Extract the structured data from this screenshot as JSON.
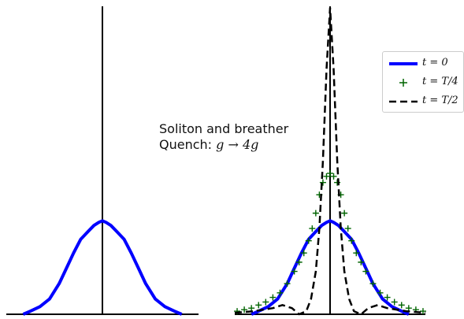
{
  "annotation": {
    "line1": "Soliton and breather",
    "line2_prefix": "Quench: ",
    "line2_math": "g → 4g"
  },
  "legend": {
    "entries": [
      {
        "label": "t = 0",
        "style": "solid",
        "color": "#0000ff"
      },
      {
        "label": "t = T/4",
        "style": "plus",
        "color": "#006400"
      },
      {
        "label": "t = T/2",
        "style": "dashed",
        "color": "#000000"
      }
    ]
  },
  "chart_data": [
    {
      "type": "line",
      "panel": "left",
      "xlim": [
        -4,
        4
      ],
      "ylim": [
        0,
        1
      ],
      "axes_frame": "bottom spine and vertical line at x = 0 only, no ticks",
      "series": [
        {
          "style": "solid",
          "color": "#0000ff",
          "x": [
            -3.3,
            -3.0,
            -2.6,
            -2.2,
            -1.8,
            -1.5,
            -1.2,
            -0.9,
            -0.6,
            -0.35,
            -0.15,
            0.0,
            0.15,
            0.35,
            0.6,
            0.9,
            1.2,
            1.5,
            1.8,
            2.2,
            2.6,
            3.0,
            3.3
          ],
          "y": [
            0.0,
            0.01,
            0.025,
            0.05,
            0.1,
            0.15,
            0.2,
            0.245,
            0.27,
            0.29,
            0.3,
            0.305,
            0.3,
            0.29,
            0.27,
            0.245,
            0.2,
            0.15,
            0.1,
            0.05,
            0.025,
            0.01,
            0.0
          ]
        }
      ]
    },
    {
      "type": "line",
      "panel": "right",
      "xlim": [
        -4,
        4
      ],
      "ylim": [
        0,
        1
      ],
      "axes_frame": "bottom spine and vertical line at x = 0 only, no ticks",
      "series": [
        {
          "name": "t = 0",
          "style": "solid",
          "color": "#0000ff",
          "x": [
            -3.3,
            -3.0,
            -2.6,
            -2.2,
            -1.8,
            -1.5,
            -1.2,
            -0.9,
            -0.6,
            -0.35,
            -0.15,
            0.0,
            0.15,
            0.35,
            0.6,
            0.9,
            1.2,
            1.5,
            1.8,
            2.2,
            2.6,
            3.0,
            3.3
          ],
          "y": [
            0.0,
            0.01,
            0.025,
            0.05,
            0.1,
            0.15,
            0.2,
            0.245,
            0.27,
            0.29,
            0.3,
            0.305,
            0.3,
            0.29,
            0.27,
            0.245,
            0.2,
            0.15,
            0.1,
            0.05,
            0.025,
            0.01,
            0.0
          ]
        },
        {
          "name": "t = T/4",
          "style": "plus",
          "color": "#006400",
          "x": [
            -3.9,
            -3.6,
            -3.3,
            -3.0,
            -2.7,
            -2.4,
            -2.1,
            -1.8,
            -1.5,
            -1.3,
            -1.1,
            -0.9,
            -0.75,
            -0.6,
            -0.45,
            -0.3,
            -0.15,
            0.0,
            0.15,
            0.3,
            0.45,
            0.6,
            0.75,
            0.9,
            1.1,
            1.3,
            1.5,
            1.8,
            2.1,
            2.4,
            2.7,
            3.0,
            3.3,
            3.6,
            3.9
          ],
          "y": [
            0.01,
            0.015,
            0.02,
            0.03,
            0.04,
            0.055,
            0.07,
            0.1,
            0.14,
            0.17,
            0.2,
            0.24,
            0.28,
            0.33,
            0.39,
            0.43,
            0.45,
            0.46,
            0.45,
            0.43,
            0.39,
            0.33,
            0.28,
            0.24,
            0.2,
            0.17,
            0.14,
            0.1,
            0.07,
            0.055,
            0.04,
            0.03,
            0.02,
            0.015,
            0.01
          ]
        },
        {
          "name": "t = T/2",
          "style": "dashed",
          "color": "#000000",
          "x": [
            -4.0,
            -3.2,
            -2.4,
            -2.0,
            -1.6,
            -1.3,
            -1.0,
            -0.8,
            -0.6,
            -0.45,
            -0.3,
            -0.15,
            0.0,
            0.15,
            0.3,
            0.45,
            0.6,
            0.8,
            1.0,
            1.3,
            1.6,
            2.0,
            2.4,
            3.2,
            4.0
          ],
          "y": [
            0.005,
            0.01,
            0.02,
            0.03,
            0.02,
            0.0,
            0.01,
            0.05,
            0.14,
            0.28,
            0.5,
            0.8,
            1.0,
            0.8,
            0.5,
            0.28,
            0.14,
            0.05,
            0.01,
            0.0,
            0.02,
            0.03,
            0.02,
            0.01,
            0.005
          ]
        }
      ]
    }
  ]
}
